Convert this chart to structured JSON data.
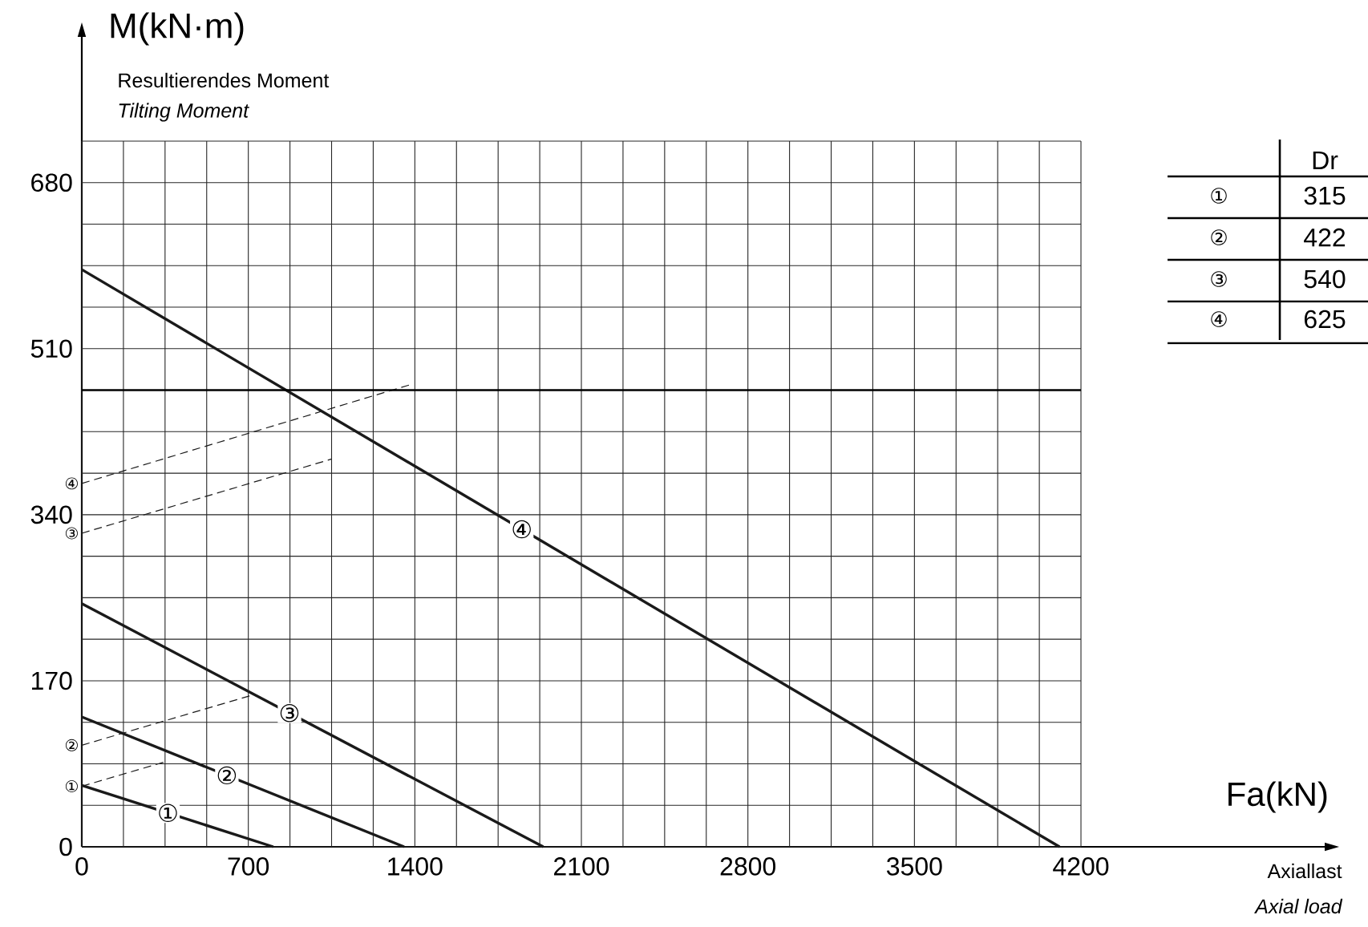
{
  "chart_data": {
    "type": "line",
    "xlabel": "Fa(kN)",
    "ylabel": "M(kN·m)",
    "annotations": [
      "Resultierendes Moment",
      "Tilting Moment",
      "Axiallast",
      "Axial load",
      "Dr",
      "①",
      "315",
      "②",
      "422",
      "③",
      "540",
      "④",
      "625"
    ],
    "xlim": [
      0,
      5228
    ],
    "ylim": [
      0,
      830
    ],
    "xticks": [
      0,
      {
        "value": 175,
        "label": null
      },
      {
        "value": 350,
        "label": null
      },
      {
        "value": 525,
        "label": null
      },
      700,
      {
        "value": 875,
        "label": null
      },
      {
        "value": 1050,
        "label": null
      },
      {
        "value": 1225,
        "label": null
      },
      1400,
      {
        "value": 1575,
        "label": null
      },
      {
        "value": 1750,
        "label": null
      },
      {
        "value": 1925,
        "label": null
      },
      2100,
      {
        "value": 2275,
        "label": null
      },
      {
        "value": 2450,
        "label": null
      },
      {
        "value": 2625,
        "label": null
      },
      2800,
      {
        "value": 2975,
        "label": null
      },
      {
        "value": 3150,
        "label": null
      },
      {
        "value": 3325,
        "label": null
      },
      3500,
      {
        "value": 3675,
        "label": null
      },
      {
        "value": 3850,
        "label": null
      },
      {
        "value": 4025,
        "label": null
      },
      4200
    ],
    "yticks": [
      0,
      {
        "value": 42.5,
        "label": null
      },
      {
        "value": 85,
        "label": null
      },
      {
        "value": 127.5,
        "label": null
      },
      170,
      {
        "value": 212.5,
        "label": null
      },
      {
        "value": 255,
        "label": null
      },
      {
        "value": 297.5,
        "label": null
      },
      340,
      {
        "value": 382.5,
        "label": null
      },
      {
        "value": 425,
        "label": null
      },
      {
        "value": 467.5,
        "label": null
      },
      510,
      {
        "value": 552.5,
        "label": null
      },
      {
        "value": 595,
        "label": null
      },
      {
        "value": 637.5,
        "label": null
      },
      680,
      {
        "value": 722.5,
        "label": null
      }
    ],
    "grid": true,
    "marker": "none",
    "ref_lines": [
      {
        "axis": "y",
        "value": 467.5
      }
    ],
    "series": [
      {
        "name": "①",
        "color": "#1a1a1a",
        "line_style": "solid",
        "x": [
          0,
          805
        ],
        "values": [
          63,
          0
        ]
      },
      {
        "name": "②",
        "color": "#1a1a1a",
        "line_style": "solid",
        "x": [
          0,
          1355
        ],
        "values": [
          133,
          0
        ]
      },
      {
        "name": "③",
        "color": "#1a1a1a",
        "line_style": "solid",
        "x": [
          0,
          1940
        ],
        "values": [
          249,
          0
        ]
      },
      {
        "name": "④",
        "color": "#1a1a1a",
        "line_style": "solid",
        "x": [
          0,
          4110
        ],
        "values": [
          591,
          0
        ]
      },
      {
        "name": "①",
        "color": "#1a1a1a",
        "line_style": "dashed",
        "x": [
          0,
          350
        ],
        "values": [
          62,
          87
        ]
      },
      {
        "name": "②",
        "color": "#1a1a1a",
        "line_style": "dashed",
        "x": [
          0,
          712
        ],
        "values": [
          104,
          155
        ]
      },
      {
        "name": "③",
        "color": "#1a1a1a",
        "line_style": "dashed",
        "x": [
          0,
          1050
        ],
        "values": [
          321,
          397
        ]
      },
      {
        "name": "④",
        "color": "#1a1a1a",
        "line_style": "dashed",
        "x": [
          0,
          1393
        ],
        "values": [
          372,
          474
        ]
      }
    ]
  }
}
